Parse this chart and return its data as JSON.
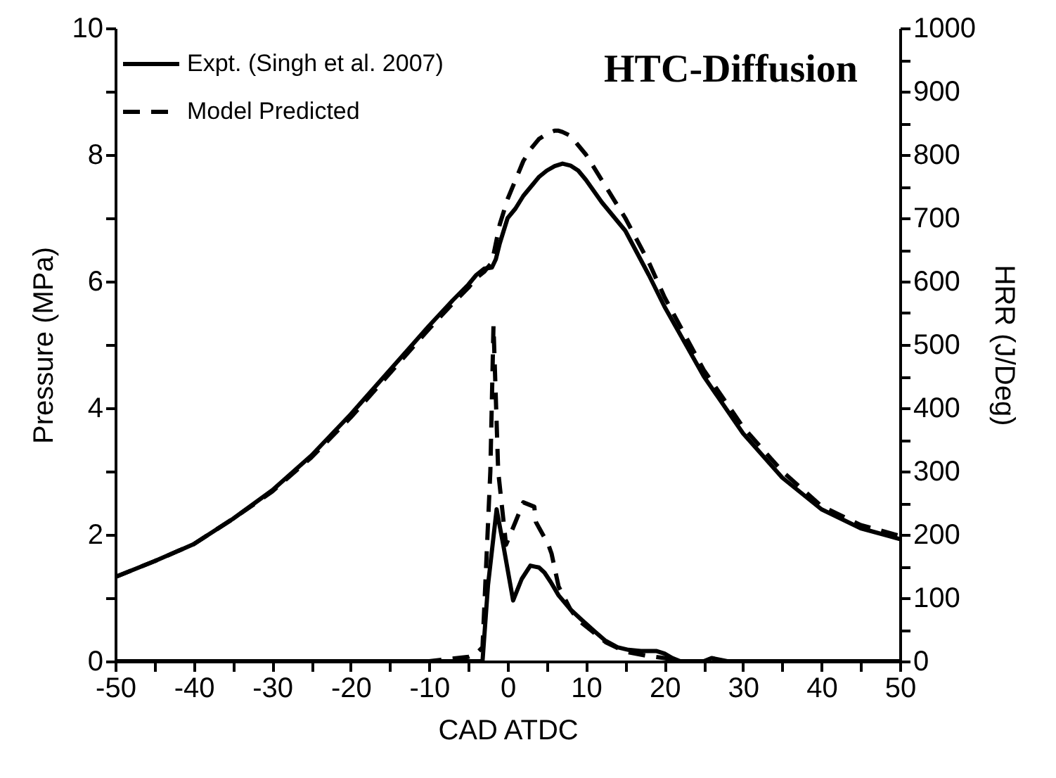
{
  "chart_data": {
    "type": "line",
    "title": "HTC-Diffusion",
    "xlabel": "CAD ATDC",
    "ylabel": "Pressure (MPa)",
    "y2label": "HRR (J/Deg)",
    "xlim": [
      -50,
      50
    ],
    "xticks": [
      -50,
      {
        "value": -45,
        "label": null
      },
      -40,
      {
        "value": -35,
        "label": null
      },
      -30,
      {
        "value": -25,
        "label": null
      },
      -20,
      {
        "value": -15,
        "label": null
      },
      -10,
      {
        "value": -5,
        "label": null
      },
      0,
      {
        "value": 5,
        "label": null
      },
      10,
      {
        "value": 15,
        "label": null
      },
      20,
      {
        "value": 25,
        "label": null
      },
      30,
      {
        "value": 35,
        "label": null
      },
      40,
      {
        "value": 45,
        "label": null
      },
      50
    ],
    "ylim": [
      0,
      10
    ],
    "yticks": [
      0,
      {
        "value": 1,
        "label": null
      },
      2,
      {
        "value": 3,
        "label": null
      },
      4,
      {
        "value": 5,
        "label": null
      },
      6,
      {
        "value": 7,
        "label": null
      },
      8,
      {
        "value": 9,
        "label": null
      },
      10
    ],
    "y2lim": [
      0,
      1000
    ],
    "y2ticks": [
      0,
      {
        "value": 50,
        "label": null
      },
      100,
      {
        "value": 150,
        "label": null
      },
      200,
      {
        "value": 250,
        "label": null
      },
      300,
      {
        "value": 350,
        "label": null
      },
      400,
      {
        "value": 450,
        "label": null
      },
      500,
      {
        "value": 550,
        "label": null
      },
      600,
      {
        "value": 650,
        "label": null
      },
      700,
      {
        "value": 750,
        "label": null
      },
      800,
      {
        "value": 850,
        "label": null
      },
      900,
      {
        "value": 950,
        "label": null
      },
      1000
    ],
    "legend": "top left",
    "grid": false,
    "series": [
      {
        "name": "Expt. (Singh et al. 2007)",
        "color": "#000000",
        "line_style": "solid",
        "x": [
          -50,
          -45,
          -40,
          -35,
          -30,
          -25,
          -20,
          -15,
          -10,
          -7,
          -5,
          -4,
          -3,
          -2,
          -1.5,
          -1,
          0,
          1,
          2,
          3,
          4,
          5,
          6,
          7,
          8,
          9,
          10,
          12,
          15,
          18,
          20,
          25,
          30,
          35,
          40,
          45,
          50
        ],
        "values": [
          1.33,
          1.58,
          1.85,
          2.25,
          2.7,
          3.25,
          3.9,
          4.6,
          5.3,
          5.7,
          5.95,
          6.1,
          6.2,
          6.22,
          6.35,
          6.6,
          7.0,
          7.15,
          7.35,
          7.5,
          7.65,
          7.75,
          7.82,
          7.86,
          7.83,
          7.75,
          7.6,
          7.25,
          6.8,
          6.1,
          5.6,
          4.5,
          3.6,
          2.9,
          2.4,
          2.1,
          1.93
        ]
      },
      {
        "name": "Model Predicted",
        "color": "#000000",
        "line_style": "dashed",
        "x": [
          -50,
          -45,
          -40,
          -35,
          -30,
          -25,
          -20,
          -15,
          -10,
          -7,
          -5,
          -4,
          -3,
          -2,
          -1,
          0,
          1,
          2,
          3,
          4,
          5,
          6,
          6.5,
          7,
          8,
          9,
          10,
          12,
          15,
          18,
          20,
          25,
          30,
          35,
          40,
          45,
          50
        ],
        "values": [
          1.33,
          1.58,
          1.85,
          2.25,
          2.68,
          3.22,
          3.85,
          4.55,
          5.25,
          5.65,
          5.9,
          6.05,
          6.15,
          6.3,
          6.9,
          7.3,
          7.6,
          7.9,
          8.1,
          8.25,
          8.33,
          8.38,
          8.38,
          8.36,
          8.3,
          8.15,
          8.0,
          7.6,
          7.0,
          6.3,
          5.75,
          4.6,
          3.7,
          3.0,
          2.45,
          2.15,
          1.98
        ]
      },
      {
        "color": "#000000",
        "line_style": "solid",
        "axis": "y2",
        "x": [
          -50,
          -10,
          -3.5,
          -3.2,
          -2.5,
          -1.4,
          -0.5,
          0.7,
          1.8,
          2.9,
          4,
          4.7,
          5.5,
          6.5,
          8,
          9.3,
          11,
          12.4,
          14,
          15.4,
          17,
          19,
          20,
          21,
          22,
          25,
          26,
          28,
          30,
          40,
          50
        ],
        "values": [
          0,
          0,
          0,
          0,
          120,
          240,
          180,
          96,
          130,
          151,
          148,
          140,
          125,
          104,
          82,
          67,
          48,
          33,
          22,
          18,
          16,
          16,
          12,
          5,
          0,
          0,
          5,
          0,
          0,
          0,
          0
        ]
      },
      {
        "color": "#000000",
        "line_style": "dashed",
        "axis": "y2",
        "x": [
          -50,
          -10,
          -5,
          -4,
          -3.2,
          -2.2,
          -1.8,
          -1.2,
          -0.2,
          1,
          2,
          3.4,
          3.6,
          5.2,
          5.6,
          6.5,
          8,
          9,
          11,
          12.5,
          15,
          18,
          20,
          22,
          50
        ],
        "values": [
          0,
          0,
          7,
          12,
          22,
          300,
          530,
          300,
          184,
          220,
          251,
          244,
          220,
          184,
          170,
          118,
          82,
          65,
          45,
          30,
          15,
          8,
          5,
          0,
          0
        ]
      }
    ]
  }
}
